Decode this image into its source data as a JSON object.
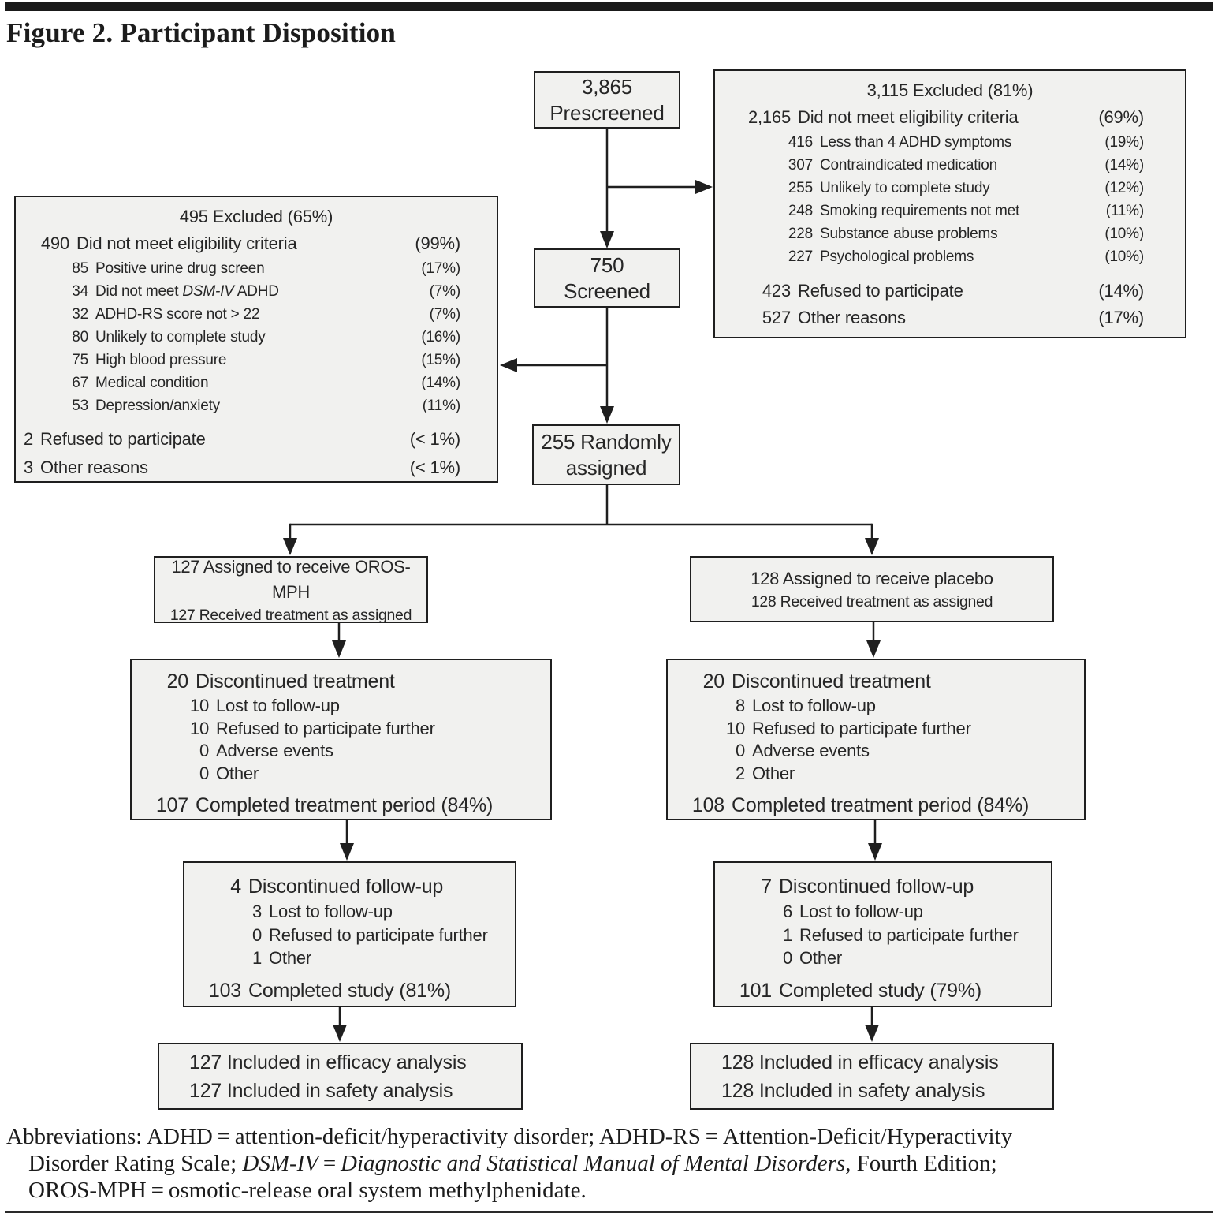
{
  "title": "Figure 2. Participant Disposition",
  "colors": {
    "box_fill": "#f1f1ef",
    "box_border": "#1f1f1f",
    "connector": "#1f1f1f",
    "text": "#262626"
  },
  "flow": {
    "prescreened": {
      "line1": "3,865",
      "line2": "Prescreened"
    },
    "excluded_prescreen": {
      "title": "3,115 Excluded (81%)",
      "rows": [
        {
          "num": "2,165",
          "label": "Did not meet eligibility criteria",
          "pct": "(69%)",
          "level": 1
        },
        {
          "num": "416",
          "label": "Less than 4 ADHD symptoms",
          "pct": "(19%)",
          "level": 2
        },
        {
          "num": "307",
          "label": "Contraindicated medication",
          "pct": "(14%)",
          "level": 2
        },
        {
          "num": "255",
          "label": "Unlikely to complete study",
          "pct": "(12%)",
          "level": 2
        },
        {
          "num": "248",
          "label": "Smoking requirements not met",
          "pct": "(11%)",
          "level": 2
        },
        {
          "num": "228",
          "label": "Substance abuse problems",
          "pct": "(10%)",
          "level": 2
        },
        {
          "num": "227",
          "label": "Psychological problems",
          "pct": "(10%)",
          "level": 2
        },
        {
          "num": "423",
          "label": "Refused to participate",
          "pct": "(14%)",
          "level": 1,
          "gap": true
        },
        {
          "num": "527",
          "label": "Other reasons",
          "pct": "(17%)",
          "level": 1
        }
      ]
    },
    "screened": {
      "line1": "750",
      "line2": "Screened"
    },
    "excluded_screen": {
      "title": "495 Excluded (65%)",
      "rows": [
        {
          "num": "490",
          "label": "Did not meet eligibility criteria",
          "pct": "(99%)",
          "level": 1
        },
        {
          "num": "85",
          "label": "Positive urine drug screen",
          "pct": "(17%)",
          "level": 2
        },
        {
          "num": "34",
          "parts": [
            {
              "t": "Did not meet "
            },
            {
              "t": "DSM-IV",
              "i": true
            },
            {
              "t": " ADHD"
            }
          ],
          "pct": "(7%)",
          "level": 2
        },
        {
          "num": "32",
          "label": "ADHD-RS score not > 22",
          "pct": "(7%)",
          "level": 2
        },
        {
          "num": "80",
          "label": "Unlikely to complete study",
          "pct": "(16%)",
          "level": 2
        },
        {
          "num": "75",
          "label": "High blood pressure",
          "pct": "(15%)",
          "level": 2
        },
        {
          "num": "67",
          "label": "Medical condition",
          "pct": "(14%)",
          "level": 2
        },
        {
          "num": "53",
          "label": "Depression/anxiety",
          "pct": "(11%)",
          "level": 2
        },
        {
          "num": "2",
          "label": "Refused to participate",
          "pct": "(< 1%)",
          "level": 0,
          "gap": true
        },
        {
          "num": "3",
          "label": "Other reasons",
          "pct": "(< 1%)",
          "level": 0
        }
      ]
    },
    "randomized": {
      "line1": "255 Randomly",
      "line2": "assigned"
    },
    "assigned_oros": {
      "line1": "127 Assigned to receive OROS-MPH",
      "line2": "127 Received treatment as assigned"
    },
    "assigned_placebo": {
      "line1": "128 Assigned to receive placebo",
      "line2": "128 Received treatment as assigned"
    },
    "disc_treatment_oros": {
      "rows": [
        {
          "num": "20",
          "label": "Discontinued treatment",
          "level": 1
        },
        {
          "num": "10",
          "label": "Lost to follow-up",
          "level": 2
        },
        {
          "num": "10",
          "label": "Refused to participate further",
          "level": 2
        },
        {
          "num": "0",
          "label": "Adverse events",
          "level": 2
        },
        {
          "num": "0",
          "label": "Other",
          "level": 2
        },
        {
          "num": "107",
          "label": "Completed treatment period (84%)",
          "level": 1,
          "gap": true
        }
      ]
    },
    "disc_treatment_placebo": {
      "rows": [
        {
          "num": "20",
          "label": "Discontinued treatment",
          "level": 1
        },
        {
          "num": "8",
          "label": "Lost to follow-up",
          "level": 2
        },
        {
          "num": "10",
          "label": "Refused to participate further",
          "level": 2
        },
        {
          "num": "0",
          "label": "Adverse events",
          "level": 2
        },
        {
          "num": "2",
          "label": "Other",
          "level": 2
        },
        {
          "num": "108",
          "label": "Completed treatment period (84%)",
          "level": 1,
          "gap": true
        }
      ]
    },
    "disc_followup_oros": {
      "rows": [
        {
          "num": "4",
          "label": "Discontinued follow-up",
          "level": 1
        },
        {
          "num": "3",
          "label": "Lost to follow-up",
          "level": 2
        },
        {
          "num": "0",
          "label": "Refused to participate further",
          "level": 2
        },
        {
          "num": "1",
          "label": "Other",
          "level": 2
        },
        {
          "num": "103",
          "label": "Completed study (81%)",
          "level": 1,
          "gap": true
        }
      ]
    },
    "disc_followup_placebo": {
      "rows": [
        {
          "num": "7",
          "label": "Discontinued follow-up",
          "level": 1
        },
        {
          "num": "6",
          "label": "Lost to follow-up",
          "level": 2
        },
        {
          "num": "1",
          "label": "Refused to participate further",
          "level": 2
        },
        {
          "num": "0",
          "label": "Other",
          "level": 2
        },
        {
          "num": "101",
          "label": "Completed study (79%)",
          "level": 1,
          "gap": true
        }
      ]
    },
    "analysis_oros": {
      "line1": "127 Included in efficacy analysis",
      "line2": "127 Included in safety analysis"
    },
    "analysis_placebo": {
      "line1": "128 Included in efficacy analysis",
      "line2": "128 Included in safety analysis"
    }
  },
  "footer": {
    "lines": [
      [
        {
          "t": "Abbreviations: ADHD = attention-deficit/hyperactivity disorder; ADHD-RS = Attention-Deficit/Hyperactivity"
        }
      ],
      [
        {
          "t": "Disorder Rating Scale; "
        },
        {
          "t": "DSM-IV",
          "i": true
        },
        {
          "t": " = "
        },
        {
          "t": "Diagnostic and Statistical Manual of Mental Disorders",
          "i": true
        },
        {
          "t": ", Fourth Edition;"
        }
      ],
      [
        {
          "t": "OROS-MPH = osmotic-release oral system methylphenidate."
        }
      ]
    ]
  }
}
